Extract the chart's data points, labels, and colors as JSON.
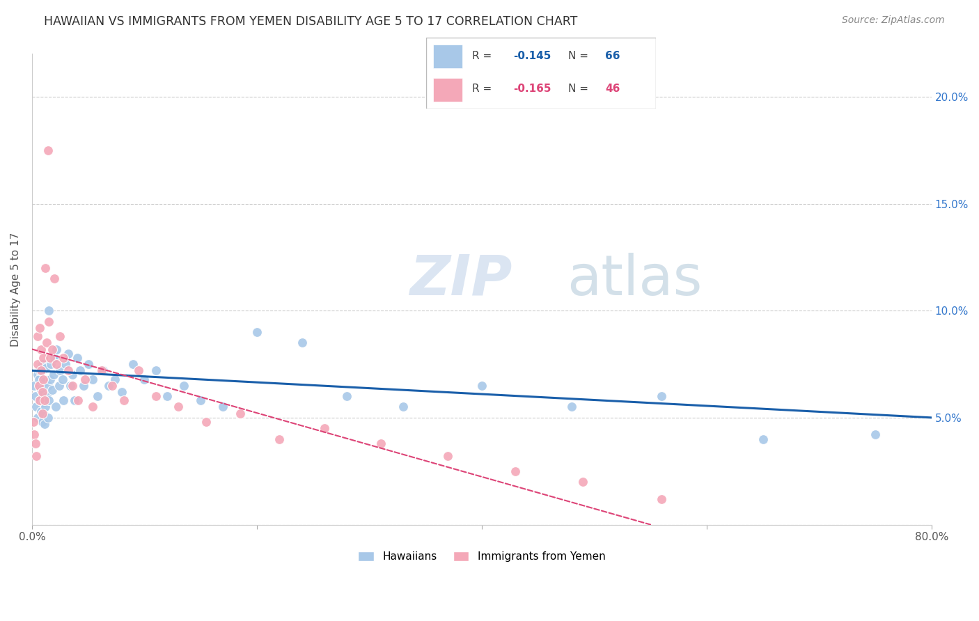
{
  "title": "HAWAIIAN VS IMMIGRANTS FROM YEMEN DISABILITY AGE 5 TO 17 CORRELATION CHART",
  "source": "Source: ZipAtlas.com",
  "ylabel": "Disability Age 5 to 17",
  "xlim": [
    0,
    0.8
  ],
  "ylim": [
    0,
    0.22
  ],
  "yticks": [
    0.0,
    0.05,
    0.1,
    0.15,
    0.2
  ],
  "ytick_labels_right": [
    "",
    "5.0%",
    "10.0%",
    "15.0%",
    "20.0%"
  ],
  "xticks": [
    0.0,
    0.2,
    0.4,
    0.6,
    0.8
  ],
  "xtick_labels": [
    "0.0%",
    "",
    "",
    "",
    "80.0%"
  ],
  "blue_color": "#a8c8e8",
  "pink_color": "#f4a8b8",
  "blue_line_color": "#1a5faa",
  "pink_line_color": "#dd4477",
  "pink_line_dash": [
    6,
    4
  ],
  "background_color": "#ffffff",
  "grid_color": "#cccccc",
  "title_color": "#333333",
  "source_color": "#888888",
  "right_tick_color": "#3377cc",
  "hawaiians_x": [
    0.002,
    0.003,
    0.004,
    0.005,
    0.005,
    0.006,
    0.007,
    0.007,
    0.008,
    0.008,
    0.009,
    0.009,
    0.01,
    0.01,
    0.01,
    0.011,
    0.011,
    0.012,
    0.012,
    0.013,
    0.014,
    0.014,
    0.015,
    0.015,
    0.016,
    0.017,
    0.018,
    0.019,
    0.02,
    0.021,
    0.022,
    0.024,
    0.025,
    0.027,
    0.028,
    0.03,
    0.032,
    0.034,
    0.036,
    0.038,
    0.04,
    0.043,
    0.046,
    0.05,
    0.054,
    0.058,
    0.063,
    0.068,
    0.074,
    0.08,
    0.09,
    0.1,
    0.11,
    0.12,
    0.135,
    0.15,
    0.17,
    0.2,
    0.24,
    0.28,
    0.33,
    0.4,
    0.48,
    0.56,
    0.65,
    0.75
  ],
  "hawaiians_y": [
    0.065,
    0.06,
    0.055,
    0.07,
    0.05,
    0.068,
    0.058,
    0.072,
    0.063,
    0.053,
    0.048,
    0.075,
    0.062,
    0.057,
    0.052,
    0.067,
    0.047,
    0.073,
    0.055,
    0.06,
    0.065,
    0.05,
    0.1,
    0.058,
    0.068,
    0.075,
    0.063,
    0.07,
    0.078,
    0.055,
    0.082,
    0.065,
    0.072,
    0.068,
    0.058,
    0.075,
    0.08,
    0.065,
    0.07,
    0.058,
    0.078,
    0.072,
    0.065,
    0.075,
    0.068,
    0.06,
    0.072,
    0.065,
    0.068,
    0.062,
    0.075,
    0.068,
    0.072,
    0.06,
    0.065,
    0.058,
    0.055,
    0.09,
    0.085,
    0.06,
    0.055,
    0.065,
    0.055,
    0.06,
    0.04,
    0.042
  ],
  "yemen_x": [
    0.001,
    0.002,
    0.003,
    0.004,
    0.005,
    0.005,
    0.006,
    0.007,
    0.007,
    0.008,
    0.008,
    0.009,
    0.009,
    0.01,
    0.01,
    0.011,
    0.012,
    0.013,
    0.014,
    0.015,
    0.016,
    0.018,
    0.02,
    0.022,
    0.025,
    0.028,
    0.032,
    0.036,
    0.041,
    0.047,
    0.054,
    0.062,
    0.071,
    0.082,
    0.095,
    0.11,
    0.13,
    0.155,
    0.185,
    0.22,
    0.26,
    0.31,
    0.37,
    0.43,
    0.49,
    0.56
  ],
  "yemen_y": [
    0.048,
    0.042,
    0.038,
    0.032,
    0.088,
    0.075,
    0.065,
    0.058,
    0.092,
    0.082,
    0.072,
    0.062,
    0.052,
    0.078,
    0.068,
    0.058,
    0.12,
    0.085,
    0.175,
    0.095,
    0.078,
    0.082,
    0.115,
    0.075,
    0.088,
    0.078,
    0.072,
    0.065,
    0.058,
    0.068,
    0.055,
    0.072,
    0.065,
    0.058,
    0.072,
    0.06,
    0.055,
    0.048,
    0.052,
    0.04,
    0.045,
    0.038,
    0.032,
    0.025,
    0.02,
    0.012
  ]
}
